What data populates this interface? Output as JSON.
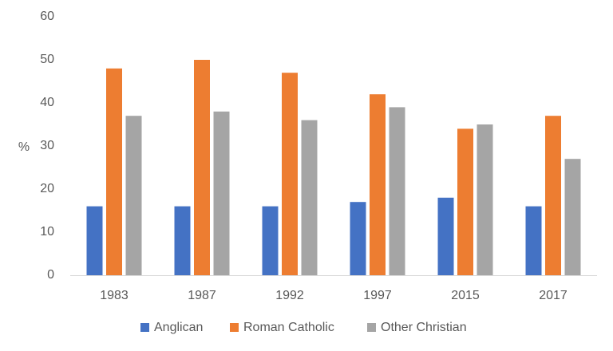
{
  "chart_data": {
    "type": "bar",
    "y_label": "%",
    "categories": [
      "1983",
      "1987",
      "1992",
      "1997",
      "2015",
      "2017"
    ],
    "series": [
      {
        "name": "Anglican",
        "color": "#4472c4",
        "values": [
          16,
          16,
          16,
          17,
          18,
          16
        ]
      },
      {
        "name": "Roman Catholic",
        "color": "#ed7d31",
        "values": [
          48,
          50,
          47,
          42,
          34,
          37
        ]
      },
      {
        "name": "Other Christian",
        "color": "#a5a5a5",
        "values": [
          37,
          38,
          36,
          39,
          35,
          27
        ]
      }
    ],
    "ylim": [
      0,
      60
    ],
    "yticks": [
      0,
      10,
      20,
      30,
      40,
      50,
      60
    ],
    "grid": false,
    "legend": "bottom"
  }
}
